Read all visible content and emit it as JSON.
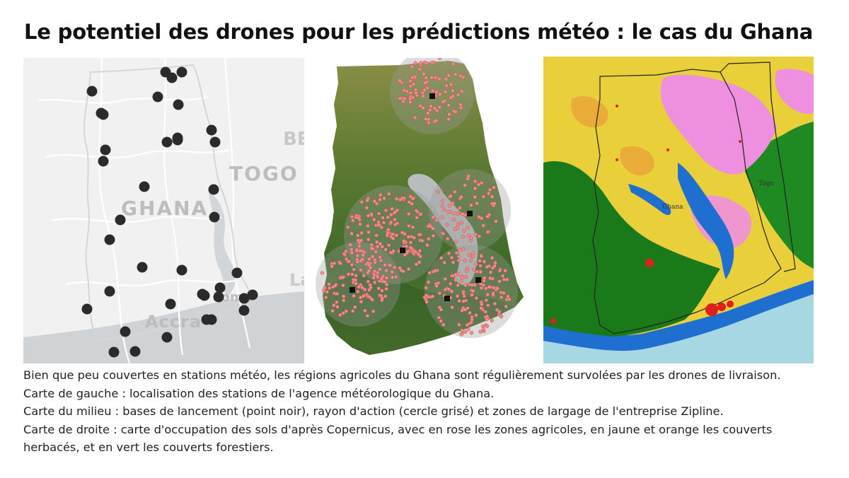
{
  "title": "Le potentiel des drones pour les prédictions météo : le cas du Ghana",
  "maps": {
    "left": {
      "labels": {
        "ghana": "GHANA",
        "togo": "TOGO",
        "accra": "Accra",
        "lome": "Lomé",
        "benin_partial": "BE",
        "la_partial": "La"
      },
      "station_count": 40
    },
    "middle": {
      "launch_base_count": 6
    },
    "right": {
      "labels": {
        "ghana": "Ghana",
        "togo": "Togo"
      }
    }
  },
  "caption": {
    "line1": "Bien que peu couvertes en stations météo, les régions agricoles du Ghana sont régulièrement survolées par les drones de livraison.",
    "line2": "Carte de gauche : localisation des stations de l'agence météorologique du Ghana.",
    "line3": "Carte du milieu : bases de lancement (point noir), rayon d'action (cercle grisé) et zones de largage de l'entreprise Zipline.",
    "line4": "Carte de droite : carte d'occupation des sols d'après Copernicus, avec en rose les zones agricoles, en jaune et orange les couverts herbacés, et en vert les couverts forestiers."
  },
  "colors": {
    "station_dot": "#2b2b2b",
    "drop_zone": "#f28b8b",
    "range_circle": "#9a9a9a",
    "forest": "#1a7a1a",
    "herbaceous": "#f2d63a",
    "agricultural": "#ef8fe0",
    "water": "#1f6fd1",
    "sea": "#a7d7e3"
  }
}
